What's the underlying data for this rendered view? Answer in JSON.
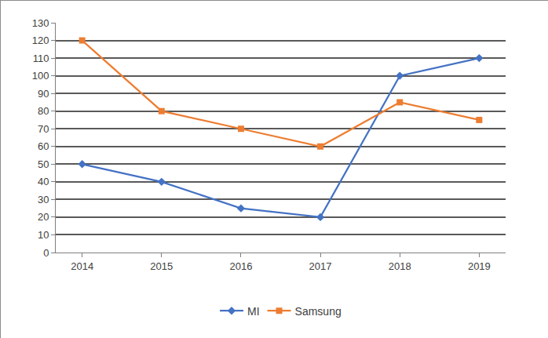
{
  "chart_data": {
    "type": "line",
    "categories": [
      "2014",
      "2015",
      "2016",
      "2017",
      "2018",
      "2019"
    ],
    "series": [
      {
        "name": "MI",
        "color": "#4472c4",
        "marker": "diamond",
        "line_style": "solid",
        "values": [
          50,
          40,
          25,
          20,
          100,
          110
        ]
      },
      {
        "name": "Samsung",
        "color": "#ed7d31",
        "marker": "square",
        "line_style": "solid",
        "values": [
          120,
          80,
          70,
          60,
          85,
          75
        ]
      }
    ],
    "ylim": [
      0,
      130
    ],
    "yticks": [
      0,
      10,
      20,
      30,
      40,
      50,
      60,
      70,
      80,
      90,
      100,
      110,
      120,
      130
    ],
    "grid": true,
    "legend": "bottom"
  }
}
